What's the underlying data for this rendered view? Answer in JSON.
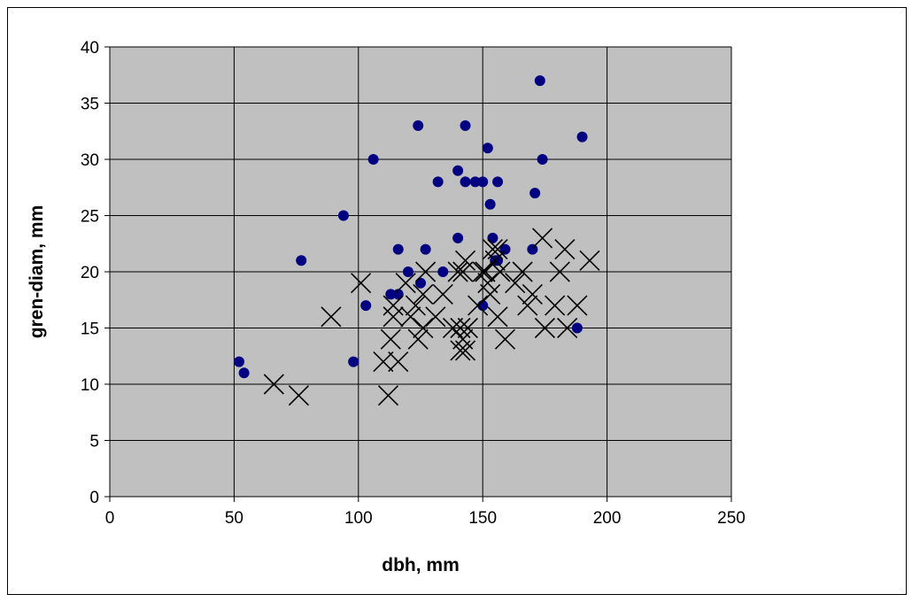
{
  "chart_data": {
    "type": "scatter",
    "title": "",
    "xlabel": "dbh, mm",
    "ylabel": "gren-diam, mm",
    "xlim": [
      0,
      250
    ],
    "ylim": [
      0,
      40
    ],
    "x_ticks": [
      "0",
      "50",
      "100",
      "150",
      "200",
      "250"
    ],
    "y_ticks": [
      "0",
      "5",
      "10",
      "15",
      "20",
      "25",
      "30",
      "35",
      "40"
    ],
    "x_tick_values": [
      0,
      50,
      100,
      150,
      200,
      250
    ],
    "y_tick_values": [
      0,
      5,
      10,
      15,
      20,
      25,
      30,
      35,
      40
    ],
    "grid": true,
    "legend": "none",
    "plot_background": "#c0c0c0",
    "series": [
      {
        "marker": "circle",
        "color": "#000080",
        "points": [
          [
            52,
            12
          ],
          [
            54,
            11
          ],
          [
            77,
            21
          ],
          [
            94,
            25
          ],
          [
            98,
            12
          ],
          [
            103,
            17
          ],
          [
            106,
            30
          ],
          [
            113,
            18
          ],
          [
            116,
            18
          ],
          [
            116,
            22
          ],
          [
            120,
            20
          ],
          [
            124,
            33
          ],
          [
            125,
            19
          ],
          [
            127,
            22
          ],
          [
            132,
            28
          ],
          [
            134,
            20
          ],
          [
            140,
            29
          ],
          [
            140,
            23
          ],
          [
            143,
            33
          ],
          [
            143,
            28
          ],
          [
            147,
            28
          ],
          [
            150,
            28
          ],
          [
            150,
            17
          ],
          [
            152,
            31
          ],
          [
            153,
            26
          ],
          [
            154,
            23
          ],
          [
            155,
            21
          ],
          [
            156,
            21
          ],
          [
            156,
            28
          ],
          [
            159,
            22
          ],
          [
            170,
            22
          ],
          [
            171,
            27
          ],
          [
            173,
            37
          ],
          [
            174,
            30
          ],
          [
            188,
            15
          ],
          [
            190,
            32
          ]
        ]
      },
      {
        "marker": "x",
        "color": "#000000",
        "points": [
          [
            66,
            10
          ],
          [
            76,
            9
          ],
          [
            89,
            16
          ],
          [
            101,
            19
          ],
          [
            110,
            12
          ],
          [
            112,
            9
          ],
          [
            113,
            14
          ],
          [
            114,
            16
          ],
          [
            114,
            17
          ],
          [
            116,
            12
          ],
          [
            119,
            19
          ],
          [
            121,
            16
          ],
          [
            123,
            17
          ],
          [
            124,
            14
          ],
          [
            126,
            18
          ],
          [
            126,
            15
          ],
          [
            127,
            20
          ],
          [
            131,
            16
          ],
          [
            134,
            18
          ],
          [
            138,
            15
          ],
          [
            140,
            20
          ],
          [
            141,
            13
          ],
          [
            141,
            15
          ],
          [
            142,
            14
          ],
          [
            142,
            20
          ],
          [
            143,
            13
          ],
          [
            143,
            21
          ],
          [
            144,
            15
          ],
          [
            148,
            17
          ],
          [
            150,
            20
          ],
          [
            151,
            20
          ],
          [
            152,
            19
          ],
          [
            153,
            18
          ],
          [
            154,
            22
          ],
          [
            155,
            21
          ],
          [
            156,
            22
          ],
          [
            156,
            16
          ],
          [
            159,
            14
          ],
          [
            157,
            20
          ],
          [
            163,
            19
          ],
          [
            166,
            20
          ],
          [
            168,
            17
          ],
          [
            170,
            18
          ],
          [
            174,
            23
          ],
          [
            175,
            15
          ],
          [
            179,
            17
          ],
          [
            181,
            20
          ],
          [
            183,
            22
          ],
          [
            184,
            15
          ],
          [
            188,
            17
          ],
          [
            193,
            21
          ]
        ]
      }
    ]
  }
}
